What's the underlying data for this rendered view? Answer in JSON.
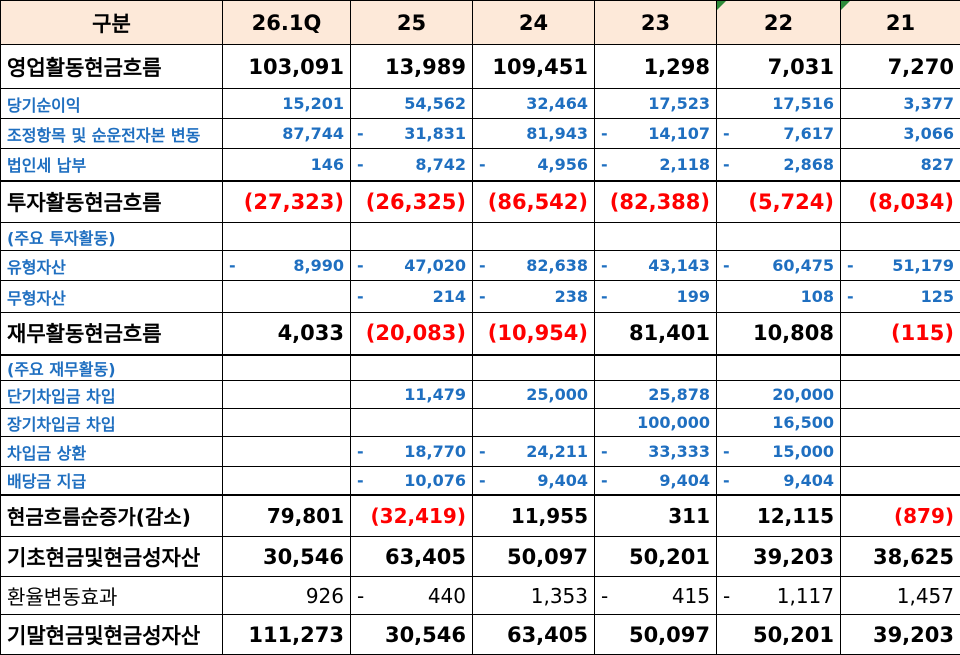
{
  "header": [
    "구분",
    "26.1Q",
    "25",
    "24",
    "23",
    "22",
    "21"
  ],
  "rows": [
    {
      "label": "영업활동현금흐름",
      "cells": [
        "103,091",
        "13,989",
        "109,451",
        "1,298",
        "7,031",
        "7,270"
      ]
    },
    {
      "label": "당기순이익",
      "cells": [
        "15,201",
        "54,562",
        "32,464",
        "17,523",
        "17,516",
        "3,377"
      ]
    },
    {
      "label": "조정항목 및 순운전자본 변동",
      "cells": [
        "87,744",
        {
          "dash": "-",
          "text": "31,831"
        },
        "81,943",
        {
          "dash": "-",
          "text": "14,107"
        },
        {
          "dash": "-",
          "text": "7,617"
        },
        "3,066"
      ]
    },
    {
      "label": "법인세 납부",
      "cells": [
        "146",
        {
          "dash": "-",
          "text": "8,742"
        },
        {
          "dash": "-",
          "text": "4,956"
        },
        {
          "dash": "-",
          "text": "2,118"
        },
        {
          "dash": "-",
          "text": "2,868"
        },
        "827"
      ]
    },
    {
      "label": "투자활동현금흐름",
      "cells": [
        "(27,323)",
        "(26,325)",
        "(86,542)",
        "(82,388)",
        "(5,724)",
        "(8,034)"
      ]
    },
    {
      "label": "(주요 투자활동)",
      "cells": [
        null,
        null,
        null,
        null,
        null,
        null
      ]
    },
    {
      "label": "유형자산",
      "cells": [
        {
          "dash": "-",
          "text": "8,990"
        },
        {
          "dash": "-",
          "text": "47,020"
        },
        {
          "dash": "-",
          "text": "82,638"
        },
        {
          "dash": "-",
          "text": "43,143"
        },
        {
          "dash": "-",
          "text": "60,475"
        },
        {
          "dash": "-",
          "text": "51,179"
        }
      ]
    },
    {
      "label": "무형자산",
      "cells": [
        null,
        {
          "dash": "-",
          "text": "214"
        },
        {
          "dash": "-",
          "text": "238"
        },
        {
          "dash": "-",
          "text": "199"
        },
        "108",
        {
          "dash": "-",
          "text": "125"
        }
      ]
    },
    {
      "label": "재무활동현금흐름",
      "cells": [
        "4,033",
        "(20,083)",
        "(10,954)",
        "81,401",
        "10,808",
        "(115)"
      ]
    },
    {
      "label": "(주요 재무활동)",
      "cells": [
        null,
        null,
        null,
        null,
        null,
        null
      ]
    },
    {
      "label": "단기차입금 차입",
      "cells": [
        null,
        "11,479",
        "25,000",
        "25,878",
        "20,000",
        null
      ]
    },
    {
      "label": "장기차입금 차입",
      "cells": [
        null,
        null,
        null,
        "100,000",
        "16,500",
        null
      ]
    },
    {
      "label": "차입금 상환",
      "cells": [
        null,
        {
          "dash": "-",
          "text": "18,770"
        },
        {
          "dash": "-",
          "text": "24,211"
        },
        {
          "dash": "-",
          "text": "33,333"
        },
        {
          "dash": "-",
          "text": "15,000"
        },
        null
      ]
    },
    {
      "label": "배당금 지급",
      "cells": [
        null,
        {
          "dash": "-",
          "text": "10,076"
        },
        {
          "dash": "-",
          "text": "9,404"
        },
        {
          "dash": "-",
          "text": "9,404"
        },
        {
          "dash": "-",
          "text": "9,404"
        },
        null
      ]
    },
    {
      "label": "현금흐름순증가(감소)",
      "cells": [
        "79,801",
        "(32,419)",
        "11,955",
        "311",
        "12,115",
        "(879)"
      ]
    },
    {
      "label": "기초현금및현금성자산",
      "cells": [
        "30,546",
        "63,405",
        "50,097",
        "50,201",
        "39,203",
        "38,625"
      ]
    },
    {
      "label": "환율변동효과",
      "cells": [
        "926",
        {
          "dash": "-",
          "text": "440"
        },
        "1,353",
        {
          "dash": "-",
          "text": "415"
        },
        {
          "dash": "-",
          "text": "1,117"
        },
        "1,457"
      ]
    },
    {
      "label": "기말현금및현금성자산",
      "cells": [
        "111,273",
        "30,546",
        "63,405",
        "50,097",
        "50,201",
        "39,203"
      ]
    }
  ]
}
